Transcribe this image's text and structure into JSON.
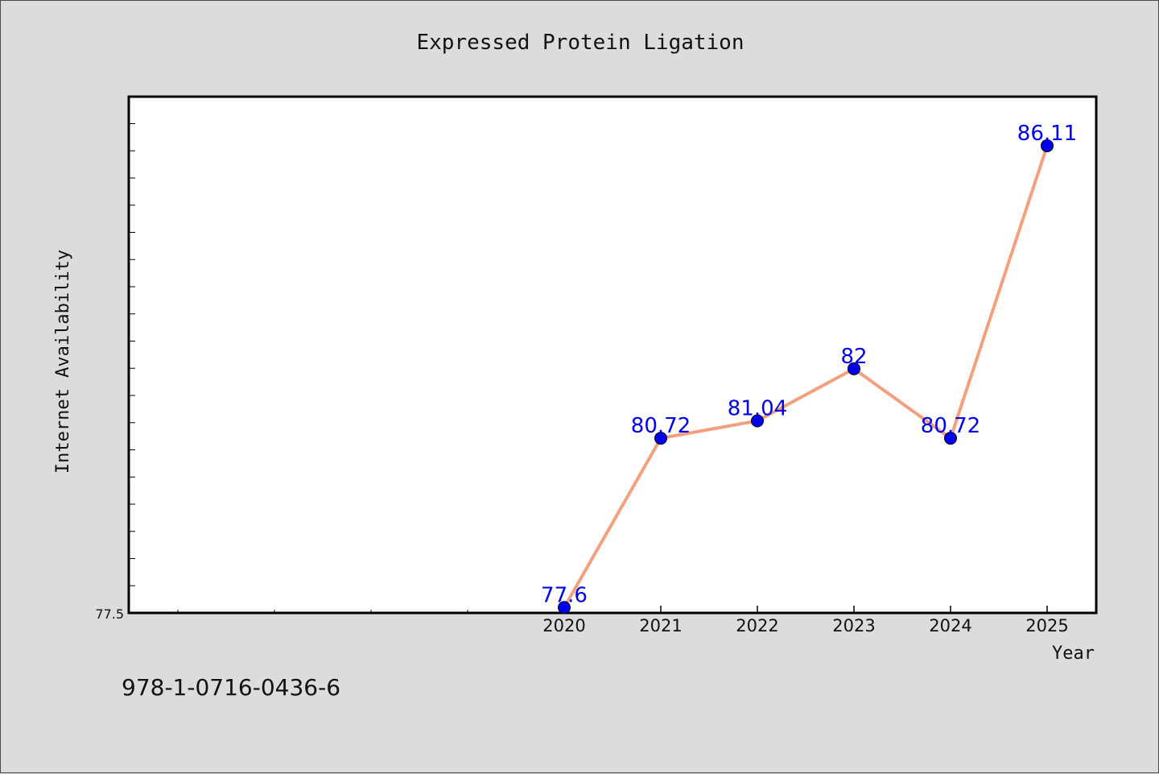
{
  "chart_data": {
    "type": "line",
    "title": "Expressed Protein Ligation",
    "xlabel": "Year",
    "ylabel": "Internet Availability",
    "categories": [
      "2020",
      "2021",
      "2022",
      "2023",
      "2024",
      "2025"
    ],
    "values": [
      77.6,
      80.72,
      81.04,
      82,
      80.72,
      86.11
    ],
    "data_labels": [
      "77.6",
      "80.72",
      "81.04",
      "82",
      "80.72",
      "86.11"
    ],
    "y_tick_labels": [
      "77.5"
    ],
    "ylim": [
      77.5,
      87.0
    ],
    "grid": false,
    "legend": "none",
    "line_color": "#f4a07f",
    "marker_color": "#0000ee",
    "label_color": "#0000ee"
  },
  "footer": {
    "code": "978-1-0716-0436-6"
  }
}
